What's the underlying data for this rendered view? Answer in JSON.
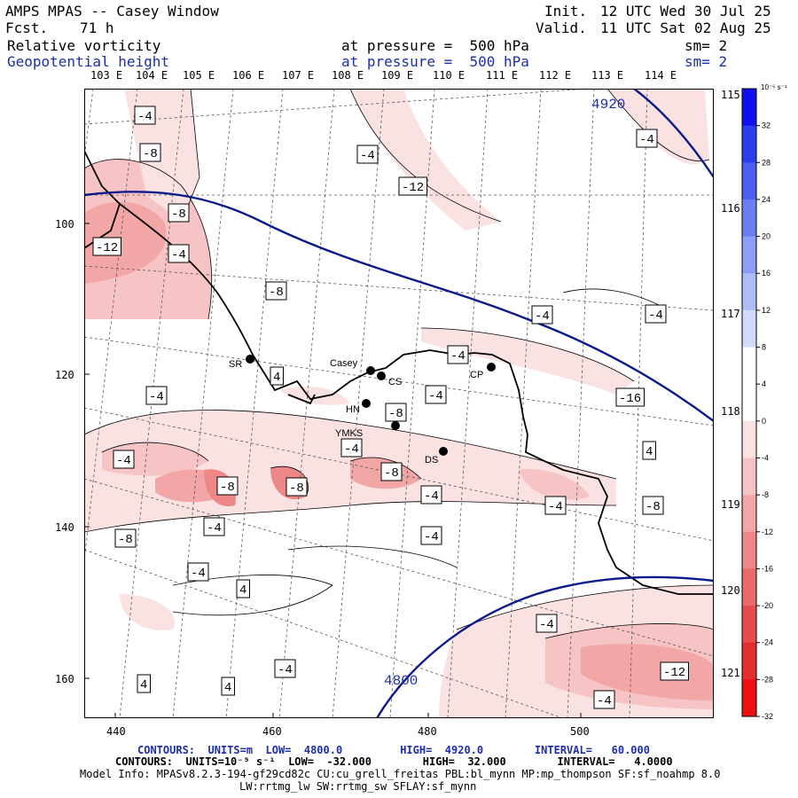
{
  "header": {
    "title": "AMPS MPAS -- Casey Window",
    "fcst_label": "Fcst.",
    "fcst_value": "71 h",
    "init_label": "Init.",
    "init_value": "12 UTC Wed 30 Jul 25",
    "valid_label": "Valid.",
    "valid_value": "11 UTC Sat 02 Aug 25",
    "field1": {
      "name": "Relative vorticity",
      "pressure": "at pressure =  500 hPa",
      "sm": "sm= 2"
    },
    "field2": {
      "name": "Geopotential height",
      "pressure": "at pressure =  500 hPa",
      "sm": "sm= 2"
    }
  },
  "colors": {
    "height_contour": "#0a1a8c",
    "coast": "#000000",
    "positive": "#1030e0",
    "negative": "#e02020"
  },
  "axes": {
    "x_ticks": [
      "440",
      "460",
      "480",
      "500"
    ],
    "y_ticks": [
      "100",
      "120",
      "140",
      "160"
    ],
    "lon_top": [
      "103 E",
      "104 E",
      "105 E",
      "106 E",
      "107 E",
      "108 E",
      "109 E",
      "110 E",
      "111 E",
      "112 E",
      "113 E",
      "114 E"
    ],
    "lon_right": [
      "115 E",
      "116 E",
      "117 E",
      "118 E",
      "119 E",
      "120 E",
      "121 E"
    ]
  },
  "height_labels": [
    "4920",
    "4800"
  ],
  "vort_labels": [
    "-4",
    "-8",
    "-12",
    "-12",
    "-8",
    "-4",
    "-8",
    "-4",
    "-4",
    "-4",
    "-4",
    "-4",
    "-4",
    "-8",
    "-8",
    "-8",
    "-8",
    "-8",
    "-4",
    "-4",
    "-4",
    "-8",
    "-4",
    "-4",
    "-4",
    "-4",
    "4",
    "4",
    "4",
    "4",
    "4",
    "-4",
    "-4",
    "-16",
    "-12",
    "-4",
    "-4"
  ],
  "stations": [
    "SR",
    "Casey",
    "CS",
    "CP",
    "HN",
    "YMKS",
    "DS"
  ],
  "colorbar": {
    "unit": "10⁻⁵ s⁻¹",
    "ticks": [
      "32",
      "28",
      "24",
      "20",
      "16",
      "12",
      "8",
      "4",
      "0",
      "-4",
      "-8",
      "-12",
      "-16",
      "-20",
      "-24",
      "-28",
      "-32"
    ],
    "colors": [
      "#1010ee",
      "#2a3ef0",
      "#4a5ef2",
      "#6a7ef4",
      "#8c9ef6",
      "#aebcf8",
      "#d2dafb",
      "#ffffff",
      "#ffffff",
      "#fbe2e2",
      "#f6c4c4",
      "#f2a6a6",
      "#ee8888",
      "#ea6a6a",
      "#e64c4c",
      "#e22e2e",
      "#ee1010"
    ]
  },
  "footer": {
    "line1": "CONTOURS:  UNITS=m  LOW=  4800.0         HIGH=  4920.0        INTERVAL=   60.000",
    "line2": "CONTOURS:  UNITS=10⁻⁵ s⁻¹  LOW=  -32.000        HIGH=  32.000        INTERVAL=   4.0000",
    "line3": "Model Info: MPASv8.2.3-194-gf29cd82c CU:cu_grell_freitas PBL:bl_mynn MP:mp_thompson SF:sf_noahmp 8.0",
    "line4": "LW:rrtmg_lw SW:rrtmg_sw SFLAY:sf_mynn"
  }
}
